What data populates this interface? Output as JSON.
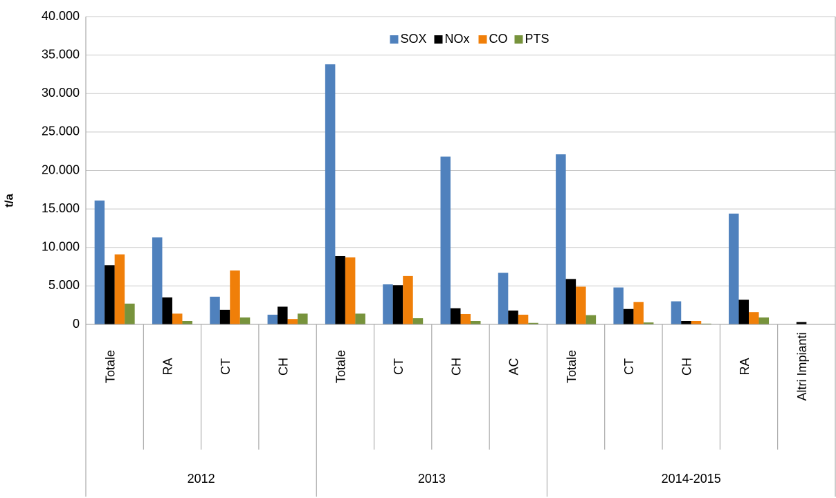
{
  "chart_data": {
    "type": "bar",
    "y_label": "t/a",
    "groups": [
      {
        "name": "2012",
        "categories": [
          "Totale",
          "RA",
          "CT",
          "CH"
        ]
      },
      {
        "name": "2013",
        "categories": [
          "Totale",
          "CT",
          "CH",
          "AC"
        ]
      },
      {
        "name": "2014-2015",
        "categories": [
          "Totale",
          "CT",
          "CH",
          "RA",
          "Altri Impianti"
        ]
      }
    ],
    "series": [
      {
        "name": "SOX",
        "color": "#4f81bd",
        "values": [
          16100,
          11300,
          3600,
          1260,
          33800,
          5200,
          21800,
          6700,
          22100,
          4800,
          3000,
          14400,
          0
        ]
      },
      {
        "name": "NOx",
        "color": "#000000",
        "values": [
          7700,
          3500,
          1900,
          2300,
          8900,
          5100,
          2100,
          1800,
          5900,
          2000,
          450,
          3200,
          300
        ]
      },
      {
        "name": "CO",
        "color": "#f07f09",
        "values": [
          9100,
          1400,
          7000,
          700,
          8700,
          6300,
          1350,
          1260,
          4900,
          2900,
          450,
          1600,
          0
        ]
      },
      {
        "name": "PTS",
        "color": "#77933c",
        "values": [
          2700,
          450,
          900,
          1400,
          1400,
          800,
          450,
          200,
          1200,
          250,
          100,
          900,
          0
        ]
      }
    ],
    "ylim": [
      0,
      40000
    ],
    "yticks": [
      0,
      {
        "value": 5000,
        "label": "5.000"
      },
      {
        "value": 10000,
        "label": "10.000"
      },
      {
        "value": 15000,
        "label": "15.000"
      },
      {
        "value": 20000,
        "label": "20.000"
      },
      {
        "value": 25000,
        "label": "25.000"
      },
      {
        "value": 30000,
        "label": "30.000"
      },
      {
        "value": 35000,
        "label": "35.000"
      },
      {
        "value": 40000,
        "label": "40.000"
      }
    ],
    "grid": true,
    "legend": "top"
  }
}
